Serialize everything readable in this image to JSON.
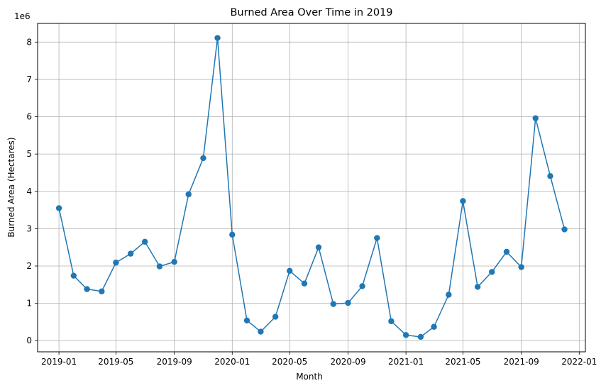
{
  "chart_data": {
    "type": "line",
    "title": "Burned Area Over Time in 2019",
    "xlabel": "Month",
    "ylabel": "Burned Area (Hectares)",
    "y_offset_label": "1e6",
    "y_scale": 1000000,
    "ylim": [
      -0.3,
      8.5
    ],
    "xlim": [
      "2018-11-17",
      "2022-01-14"
    ],
    "grid": true,
    "color": "#1f77b4",
    "x_ticks": [
      "2019-01",
      "2019-05",
      "2019-09",
      "2020-01",
      "2020-05",
      "2020-09",
      "2021-01",
      "2021-05",
      "2021-09",
      "2022-01"
    ],
    "y_ticks": [
      "0",
      "1",
      "2",
      "3",
      "4",
      "5",
      "6",
      "7",
      "8"
    ],
    "series": [
      {
        "marker": "circle",
        "x": [
          "2019-01-01",
          "2019-02-01",
          "2019-03-01",
          "2019-04-01",
          "2019-05-01",
          "2019-06-01",
          "2019-07-01",
          "2019-08-01",
          "2019-09-01",
          "2019-10-01",
          "2019-11-01",
          "2019-12-01",
          "2020-01-01",
          "2020-02-01",
          "2020-03-01",
          "2020-04-01",
          "2020-05-01",
          "2020-06-01",
          "2020-07-01",
          "2020-08-01",
          "2020-09-01",
          "2020-10-01",
          "2020-11-01",
          "2020-12-01",
          "2021-01-01",
          "2021-02-01",
          "2021-03-01",
          "2021-04-01",
          "2021-05-01",
          "2021-06-01",
          "2021-07-01",
          "2021-08-01",
          "2021-09-01",
          "2021-10-01",
          "2021-11-01",
          "2021-12-01"
        ],
        "values": [
          3.55,
          1.74,
          1.38,
          1.32,
          2.09,
          2.33,
          2.65,
          1.99,
          2.11,
          3.92,
          4.89,
          8.11,
          2.84,
          0.54,
          0.24,
          0.64,
          1.87,
          1.53,
          2.5,
          0.98,
          1.01,
          1.46,
          2.75,
          0.52,
          0.15,
          0.1,
          0.37,
          1.23,
          3.74,
          1.44,
          1.84,
          2.38,
          1.97,
          5.96,
          4.41,
          2.98
        ]
      }
    ]
  }
}
